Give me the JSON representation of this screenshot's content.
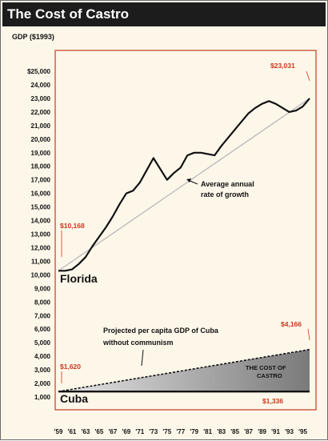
{
  "chart_data": {
    "type": "line",
    "title": "The Cost of Castro",
    "ylabel": "GDP ($1993)",
    "ylim": [
      0,
      25000
    ],
    "yticks": [
      "1,000",
      "2,000",
      "3,000",
      "4,000",
      "5,000",
      "6,000",
      "7,000",
      "8,000",
      "9,000",
      "10,000",
      "11,000",
      "12,000",
      "13,000",
      "14,000",
      "15,000",
      "16,000",
      "17,000",
      "18,000",
      "19,000",
      "20,000",
      "21,000",
      "22,000",
      "23,000",
      "24,000",
      "$25,000"
    ],
    "xticks": [
      "'59",
      "'61",
      "'63",
      "'65",
      "'67",
      "'69",
      "'71",
      "'73",
      "'75",
      "'77",
      "'79",
      "'81",
      "'83",
      "'85",
      "'87",
      "'89",
      "'91",
      "'93",
      "'95"
    ],
    "x": [
      1959,
      1960,
      1961,
      1962,
      1963,
      1964,
      1965,
      1966,
      1967,
      1968,
      1969,
      1970,
      1971,
      1972,
      1973,
      1974,
      1975,
      1976,
      1977,
      1978,
      1979,
      1980,
      1981,
      1982,
      1983,
      1984,
      1985,
      1986,
      1987,
      1988,
      1989,
      1990,
      1991,
      1992,
      1993,
      1994,
      1995,
      1996
    ],
    "series": [
      {
        "name": "Florida",
        "values": [
          10300,
          10300,
          10400,
          10800,
          11300,
          12100,
          12800,
          13500,
          14300,
          15200,
          16000,
          16200,
          16800,
          17700,
          18600,
          17800,
          17000,
          17500,
          17900,
          18800,
          19000,
          19000,
          18900,
          18800,
          19500,
          20100,
          20700,
          21300,
          21900,
          22300,
          22600,
          22800,
          22600,
          22300,
          22000,
          22100,
          22400,
          23000
        ]
      },
      {
        "name": "Cuba",
        "values": [
          1400,
          1400,
          1400,
          1400,
          1400,
          1400,
          1400,
          1400,
          1400,
          1400,
          1400,
          1400,
          1400,
          1400,
          1400,
          1400,
          1400,
          1400,
          1400,
          1400,
          1400,
          1400,
          1400,
          1400,
          1400,
          1400,
          1400,
          1400,
          1400,
          1400,
          1400,
          1400,
          1400,
          1400,
          1400,
          1400,
          1400,
          1400
        ]
      }
    ],
    "trend_lines": [
      {
        "name": "Average annual rate of growth",
        "from": [
          1959,
          10300
        ],
        "to": [
          1996,
          23000
        ]
      },
      {
        "name": "Projected per capita GDP of Cuba without communism",
        "from": [
          1959,
          1400
        ],
        "to": [
          1996,
          4500
        ]
      }
    ],
    "callouts": [
      "$10,168",
      "$23,031",
      "$1,620",
      "$4,166",
      "$1,336"
    ],
    "annotations": {
      "avg_growth": [
        "Average annual",
        "rate of growth"
      ],
      "projected": [
        "Projected per capita GDP of Cuba",
        "without communism"
      ],
      "cost": [
        "THE COST OF",
        "CASTRO"
      ]
    },
    "series_labels": {
      "florida": "Florida",
      "cuba": "Cuba"
    },
    "grid": false,
    "colors": {
      "accent": "#c9391d",
      "line": "#111111",
      "trend": "#bdbdbd",
      "wedge": "#8c8c8c",
      "title_bg": "#1c1c1c",
      "background": "#fdf7ea"
    }
  }
}
